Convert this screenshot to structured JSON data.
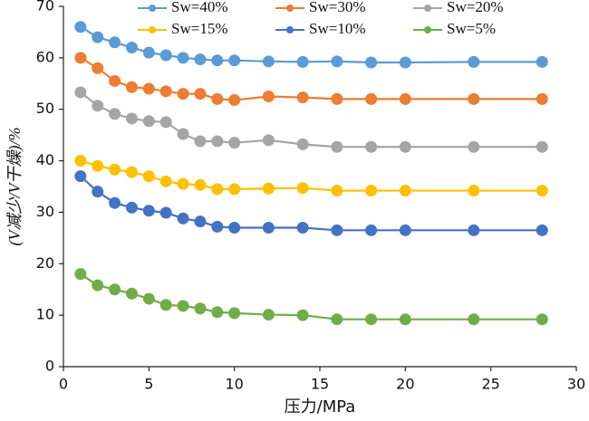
{
  "chart_data": {
    "type": "line",
    "x_label": "压力/MPa",
    "y_label": "(V减少/V干燥)/%",
    "x": [
      1,
      2,
      3,
      4,
      5,
      6,
      7,
      8,
      9,
      10,
      12,
      14,
      16,
      18,
      20,
      24,
      28
    ],
    "series": [
      {
        "name": "Sw=40%",
        "color": "#5b9bd5",
        "values": [
          66,
          64,
          63,
          62,
          61,
          60.5,
          60,
          59.7,
          59.5,
          59.5,
          59.3,
          59.2,
          59.3,
          59.1,
          59.1,
          59.2,
          59.2
        ]
      },
      {
        "name": "Sw=30%",
        "color": "#ed7d31",
        "values": [
          60,
          58,
          55.5,
          54.3,
          54,
          53.5,
          53,
          53,
          52,
          51.8,
          52.5,
          52.3,
          52,
          52,
          52,
          52,
          52
        ]
      },
      {
        "name": "Sw=20%",
        "color": "#a5a5a5",
        "values": [
          53.3,
          50.7,
          49.1,
          48.2,
          47.7,
          47.5,
          45.2,
          43.8,
          43.8,
          43.5,
          44,
          43.2,
          42.7,
          42.7,
          42.7,
          42.7,
          42.7
        ]
      },
      {
        "name": "Sw=15%",
        "color": "#ffc000",
        "values": [
          40,
          39,
          38.3,
          37.8,
          37,
          36,
          35.5,
          35.3,
          34.5,
          34.5,
          34.6,
          34.7,
          34.2,
          34.2,
          34.2,
          34.2,
          34.2
        ]
      },
      {
        "name": "Sw=10%",
        "color": "#4472c4",
        "values": [
          37,
          34,
          31.8,
          30.9,
          30.3,
          29.9,
          28.8,
          28.2,
          27.2,
          27,
          27,
          27,
          26.5,
          26.5,
          26.5,
          26.5,
          26.5
        ]
      },
      {
        "name": "Sw=5%",
        "color": "#70ad47",
        "values": [
          18,
          15.8,
          15,
          14.2,
          13.2,
          12,
          11.8,
          11.3,
          10.6,
          10.4,
          10.1,
          10,
          9.2,
          9.2,
          9.2,
          9.2,
          9.2
        ]
      }
    ],
    "xlim": [
      0,
      30
    ],
    "xticks": [
      0,
      5,
      10,
      15,
      20,
      25,
      30
    ],
    "ylim": [
      0,
      70
    ],
    "yticks": [
      0,
      10,
      20,
      30,
      40,
      50,
      60,
      70
    ],
    "grid": false
  }
}
